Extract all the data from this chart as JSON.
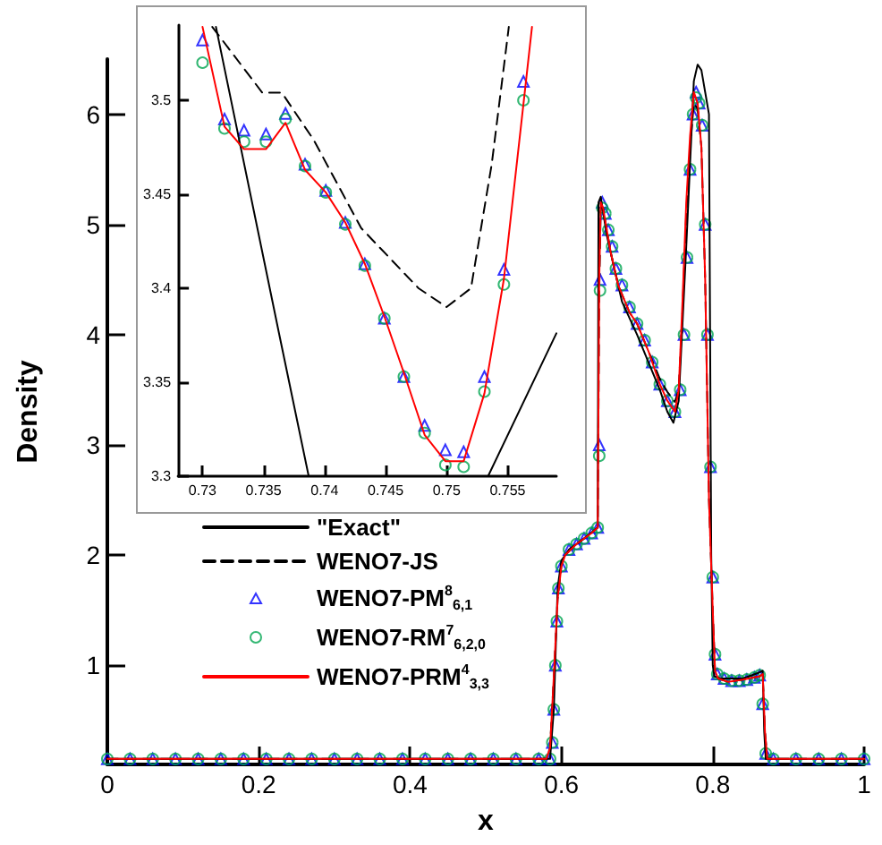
{
  "chart_data": [
    {
      "type": "line",
      "xlabel": "x",
      "ylabel": "Density",
      "xlim": [
        0,
        1
      ],
      "ylim": [
        0.1,
        6.5
      ],
      "xticks": [
        0,
        0.2,
        0.4,
        0.6,
        0.8,
        1
      ],
      "yticks": [
        1,
        2,
        3,
        4,
        5,
        6
      ],
      "grid": false,
      "legend": "bottom left",
      "series": [
        {
          "name": "\"Exact\"",
          "color": "#000000",
          "line_style": "solid",
          "marker": "none",
          "x": [
            0,
            0.585,
            0.59,
            0.595,
            0.6,
            0.61,
            0.63,
            0.648,
            0.649,
            0.652,
            0.66,
            0.67,
            0.68,
            0.69,
            0.7,
            0.715,
            0.73,
            0.74,
            0.748,
            0.755,
            0.765,
            0.775,
            0.78,
            0.785,
            0.795,
            0.798,
            0.8,
            0.802,
            0.81,
            0.84,
            0.86,
            0.866,
            0.868,
            0.87,
            1
          ],
          "values": [
            0.15,
            0.15,
            0.6,
            1.7,
            1.95,
            2.05,
            2.15,
            2.25,
            5.2,
            5.25,
            4.9,
            4.6,
            4.3,
            4.15,
            4.0,
            3.75,
            3.5,
            3.3,
            3.2,
            3.4,
            4.8,
            6.3,
            6.45,
            6.4,
            6.0,
            2.0,
            1.0,
            0.9,
            0.88,
            0.88,
            0.93,
            0.95,
            0.4,
            0.15,
            0.15
          ]
        },
        {
          "name": "WENO7-JS",
          "color": "#000000",
          "line_style": "dashed",
          "marker": "none",
          "x": [
            0,
            0.58,
            0.585,
            0.59,
            0.595,
            0.6,
            0.605,
            0.62,
            0.64,
            0.648,
            0.65,
            0.652,
            0.655,
            0.665,
            0.675,
            0.69,
            0.7,
            0.715,
            0.73,
            0.74,
            0.75,
            0.755,
            0.76,
            0.765,
            0.77,
            0.775,
            0.78,
            0.785,
            0.79,
            0.795,
            0.8,
            0.803,
            0.807,
            0.82,
            0.84,
            0.862,
            0.866,
            0.869,
            0.872,
            1
          ],
          "values": [
            0.15,
            0.15,
            0.25,
            0.9,
            1.6,
            1.9,
            2.0,
            2.1,
            2.2,
            2.25,
            4.4,
            5.15,
            5.15,
            4.75,
            4.45,
            4.2,
            4.1,
            3.85,
            3.6,
            3.48,
            3.39,
            3.5,
            4.2,
            5.1,
            5.7,
            6.1,
            6.05,
            5.7,
            4.5,
            2.5,
            1.5,
            0.95,
            0.88,
            0.85,
            0.87,
            0.9,
            0.92,
            0.4,
            0.15,
            0.15
          ]
        },
        {
          "name": "WENO7-PM$^{8}$$_{6,1}$",
          "type": "scatter",
          "color": "#0000ff",
          "marker": "triangle",
          "x": [
            0,
            0.03,
            0.06,
            0.09,
            0.12,
            0.15,
            0.18,
            0.21,
            0.24,
            0.27,
            0.3,
            0.33,
            0.36,
            0.39,
            0.42,
            0.45,
            0.48,
            0.51,
            0.54,
            0.57,
            0.585,
            0.588,
            0.59,
            0.592,
            0.594,
            0.596,
            0.6,
            0.61,
            0.62,
            0.63,
            0.64,
            0.648,
            0.65,
            0.651,
            0.654,
            0.658,
            0.662,
            0.667,
            0.672,
            0.68,
            0.69,
            0.7,
            0.71,
            0.72,
            0.73,
            0.74,
            0.75,
            0.757,
            0.762,
            0.766,
            0.77,
            0.774,
            0.778,
            0.782,
            0.786,
            0.79,
            0.793,
            0.797,
            0.8,
            0.803,
            0.806,
            0.815,
            0.825,
            0.835,
            0.845,
            0.855,
            0.862,
            0.866,
            0.87,
            0.88,
            0.91,
            0.94,
            0.97,
            1
          ],
          "values": [
            0.15,
            0.15,
            0.15,
            0.15,
            0.15,
            0.15,
            0.15,
            0.15,
            0.15,
            0.15,
            0.15,
            0.15,
            0.15,
            0.15,
            0.15,
            0.15,
            0.15,
            0.15,
            0.15,
            0.15,
            0.15,
            0.3,
            0.6,
            1.0,
            1.4,
            1.7,
            1.9,
            2.05,
            2.1,
            2.15,
            2.2,
            2.25,
            3.0,
            4.5,
            5.2,
            5.1,
            4.95,
            4.8,
            4.6,
            4.45,
            4.25,
            4.1,
            3.95,
            3.75,
            3.55,
            3.4,
            3.3,
            3.5,
            4.0,
            4.7,
            5.5,
            6.0,
            6.2,
            6.1,
            5.9,
            5.0,
            4.0,
            2.8,
            1.8,
            1.1,
            0.92,
            0.88,
            0.86,
            0.86,
            0.87,
            0.89,
            0.91,
            0.65,
            0.2,
            0.15,
            0.15,
            0.15,
            0.15,
            0.15
          ]
        },
        {
          "name": "WENO7-RM$^{7}$$_{6,2,0}$",
          "type": "scatter",
          "color": "#00a550",
          "marker": "circle",
          "x": [
            0,
            0.03,
            0.06,
            0.09,
            0.12,
            0.15,
            0.18,
            0.21,
            0.24,
            0.27,
            0.3,
            0.33,
            0.36,
            0.39,
            0.42,
            0.45,
            0.48,
            0.51,
            0.54,
            0.57,
            0.585,
            0.588,
            0.59,
            0.592,
            0.594,
            0.596,
            0.6,
            0.61,
            0.62,
            0.63,
            0.64,
            0.648,
            0.65,
            0.651,
            0.654,
            0.658,
            0.662,
            0.667,
            0.672,
            0.68,
            0.69,
            0.7,
            0.71,
            0.72,
            0.73,
            0.74,
            0.75,
            0.757,
            0.762,
            0.766,
            0.77,
            0.774,
            0.778,
            0.782,
            0.786,
            0.79,
            0.793,
            0.797,
            0.8,
            0.803,
            0.806,
            0.815,
            0.825,
            0.835,
            0.845,
            0.855,
            0.862,
            0.866,
            0.87,
            0.88,
            0.91,
            0.94,
            0.97,
            1
          ],
          "values": [
            0.15,
            0.15,
            0.15,
            0.15,
            0.15,
            0.15,
            0.15,
            0.15,
            0.15,
            0.15,
            0.15,
            0.15,
            0.15,
            0.15,
            0.15,
            0.15,
            0.15,
            0.15,
            0.15,
            0.15,
            0.15,
            0.3,
            0.6,
            1.0,
            1.4,
            1.7,
            1.9,
            2.05,
            2.1,
            2.15,
            2.2,
            2.25,
            2.9,
            4.4,
            5.15,
            5.1,
            4.95,
            4.8,
            4.6,
            4.45,
            4.25,
            4.1,
            3.95,
            3.75,
            3.55,
            3.4,
            3.3,
            3.5,
            4.0,
            4.7,
            5.5,
            6.0,
            6.15,
            6.1,
            5.9,
            5.0,
            4.0,
            2.8,
            1.8,
            1.1,
            0.92,
            0.88,
            0.86,
            0.86,
            0.87,
            0.89,
            0.91,
            0.65,
            0.2,
            0.15,
            0.15,
            0.15,
            0.15,
            0.15
          ]
        },
        {
          "name": "WENO7-PRM$^{4}$$_{3,3}$",
          "color": "#ff0000",
          "line_style": "solid",
          "marker": "none",
          "x": [
            0,
            0.58,
            0.585,
            0.59,
            0.595,
            0.6,
            0.605,
            0.62,
            0.64,
            0.648,
            0.65,
            0.652,
            0.655,
            0.665,
            0.675,
            0.69,
            0.7,
            0.715,
            0.73,
            0.74,
            0.75,
            0.755,
            0.76,
            0.765,
            0.77,
            0.775,
            0.78,
            0.785,
            0.79,
            0.795,
            0.8,
            0.803,
            0.807,
            0.82,
            0.84,
            0.862,
            0.866,
            0.869,
            0.872,
            1
          ],
          "values": [
            0.15,
            0.15,
            0.25,
            0.9,
            1.6,
            1.9,
            2.0,
            2.1,
            2.2,
            2.25,
            4.5,
            5.2,
            5.15,
            4.75,
            4.45,
            4.2,
            4.1,
            3.85,
            3.55,
            3.4,
            3.3,
            3.5,
            4.3,
            5.2,
            5.8,
            6.2,
            6.1,
            5.7,
            4.5,
            2.5,
            1.5,
            0.95,
            0.88,
            0.85,
            0.87,
            0.9,
            0.92,
            0.4,
            0.15,
            0.15
          ]
        }
      ]
    },
    {
      "type": "line",
      "xlim": [
        0.728,
        0.759
      ],
      "ylim": [
        3.3,
        3.54
      ],
      "xticks": [
        0.73,
        0.735,
        0.74,
        0.745,
        0.75,
        0.755
      ],
      "yticks": [
        3.3,
        3.35,
        3.4,
        3.45,
        3.5
      ],
      "grid": false,
      "legend": false,
      "series": [
        {
          "type": "line",
          "color": "#000000",
          "line_style": "solid",
          "marker": "none",
          "x": [
            0.7311,
            0.7363,
            0.7387,
            0.7534,
            0.759
          ],
          "values": [
            3.539,
            3.375,
            3.3,
            3.3,
            3.376
          ]
        },
        {
          "type": "line",
          "color": "#000000",
          "line_style": "dashed",
          "marker": "none",
          "x": [
            0.7308,
            0.7349,
            0.7365,
            0.7391,
            0.743,
            0.7477,
            0.75,
            0.752,
            0.7537,
            0.7551
          ],
          "values": [
            3.539,
            3.504,
            3.504,
            3.479,
            3.432,
            3.4,
            3.39,
            3.4,
            3.466,
            3.539
          ]
        },
        {
          "type": "scatter",
          "color": "#0000ff",
          "marker": "triangle",
          "x": [
            0.73,
            0.7318,
            0.7334,
            0.7352,
            0.7368,
            0.7384,
            0.7401,
            0.7417,
            0.7433,
            0.7449,
            0.7465,
            0.7482,
            0.7499,
            0.7514,
            0.7531,
            0.7547,
            0.7563
          ],
          "values": [
            3.532,
            3.49,
            3.484,
            3.482,
            3.493,
            3.466,
            3.452,
            3.435,
            3.413,
            3.384,
            3.353,
            3.327,
            3.314,
            3.313,
            3.353,
            3.41,
            3.51
          ]
        },
        {
          "type": "scatter",
          "color": "#00a550",
          "marker": "circle",
          "x": [
            0.73,
            0.7318,
            0.7334,
            0.7352,
            0.7368,
            0.7384,
            0.7401,
            0.7417,
            0.7433,
            0.7449,
            0.7465,
            0.7482,
            0.7499,
            0.7514,
            0.7531,
            0.7547,
            0.7563
          ],
          "values": [
            3.52,
            3.485,
            3.478,
            3.478,
            3.49,
            3.465,
            3.451,
            3.434,
            3.412,
            3.384,
            3.353,
            3.323,
            3.306,
            3.305,
            3.345,
            3.402,
            3.5
          ]
        },
        {
          "type": "line",
          "color": "#ff0000",
          "line_style": "solid",
          "marker": "none",
          "x": [
            0.73,
            0.7318,
            0.7334,
            0.7352,
            0.7368,
            0.7384,
            0.7401,
            0.7417,
            0.7433,
            0.7449,
            0.7465,
            0.7482,
            0.7499,
            0.7514,
            0.7531,
            0.7547,
            0.7563,
            0.757
          ],
          "values": [
            3.539,
            3.486,
            3.474,
            3.474,
            3.488,
            3.463,
            3.451,
            3.435,
            3.413,
            3.385,
            3.355,
            3.322,
            3.308,
            3.308,
            3.344,
            3.405,
            3.498,
            3.539
          ]
        }
      ]
    }
  ]
}
